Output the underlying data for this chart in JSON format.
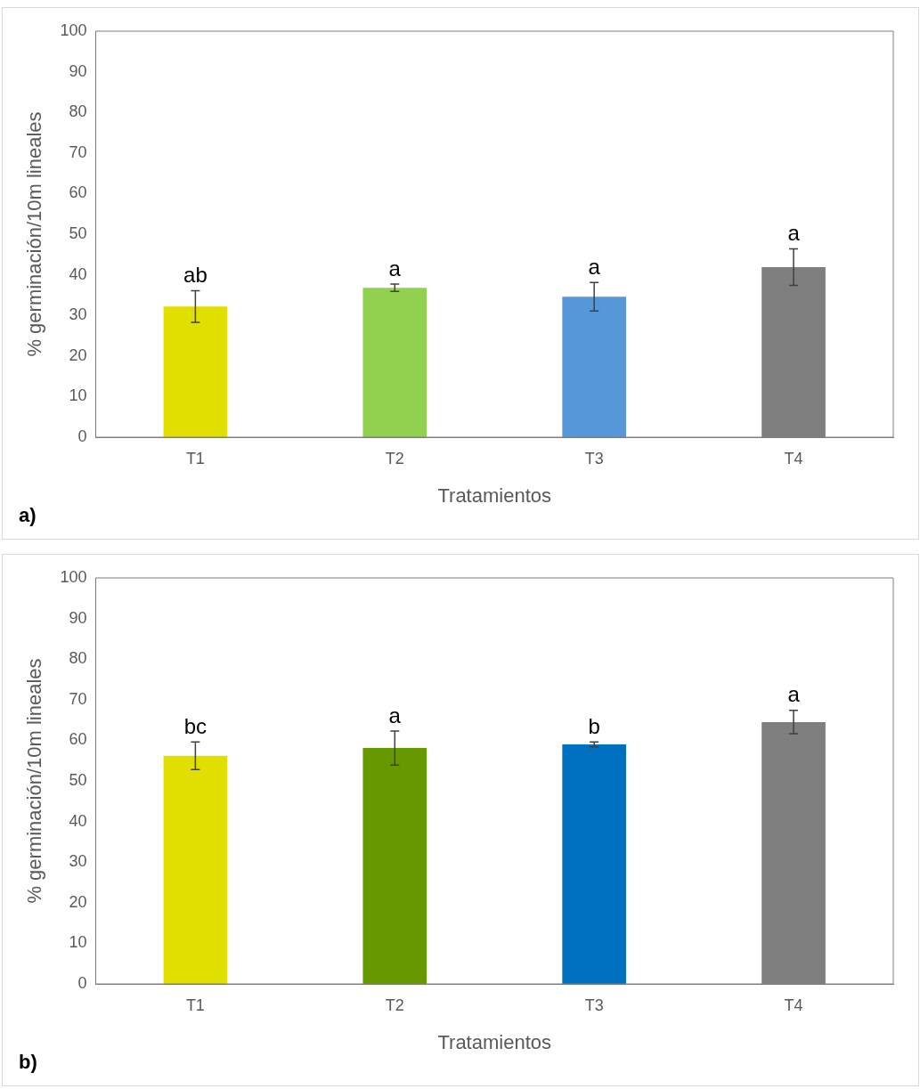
{
  "chart_data": [
    {
      "type": "bar",
      "xlabel": "Tratamientos",
      "ylabel": "% germinación/10m lineales",
      "categories": [
        "T1",
        "T2",
        "T3",
        "T4"
      ],
      "values": [
        32.2,
        36.8,
        34.6,
        41.9
      ],
      "errors": [
        3.9,
        0.9,
        3.5,
        4.5
      ],
      "colors": [
        "#e1df00",
        "#92d050",
        "#5597d9",
        "#7f7f7f"
      ],
      "ylim": [
        0,
        100
      ],
      "yticks": [
        0,
        10,
        20,
        30,
        40,
        50,
        60,
        70,
        80,
        90,
        100
      ],
      "grid": false,
      "legend": false,
      "annotations": [
        {
          "text": "ab",
          "x": "T1",
          "y": 36.1
        },
        {
          "text": "a",
          "x": "T2",
          "y": 37.7
        },
        {
          "text": "a",
          "x": "T3",
          "y": 38.1
        },
        {
          "text": "a",
          "x": "T4",
          "y": 46.4
        },
        "a)"
      ]
    },
    {
      "type": "bar",
      "xlabel": "Tratamientos",
      "ylabel": "% germinación/10m lineales",
      "categories": [
        "T1",
        "T2",
        "T3",
        "T4"
      ],
      "values": [
        56.2,
        58.1,
        59.0,
        64.5
      ],
      "errors": [
        3.4,
        4.2,
        0.6,
        2.9
      ],
      "colors": [
        "#e1df00",
        "#669900",
        "#0070c0",
        "#7f7f7f"
      ],
      "ylim": [
        0,
        100
      ],
      "yticks": [
        0,
        10,
        20,
        30,
        40,
        50,
        60,
        70,
        80,
        90,
        100
      ],
      "grid": false,
      "legend": false,
      "annotations": [
        {
          "text": "bc",
          "x": "T1",
          "y": 59.6
        },
        {
          "text": "a",
          "x": "T2",
          "y": 62.3
        },
        {
          "text": "b",
          "x": "T3",
          "y": 59.6
        },
        {
          "text": "a",
          "x": "T4",
          "y": 67.4
        },
        "b)"
      ]
    }
  ]
}
